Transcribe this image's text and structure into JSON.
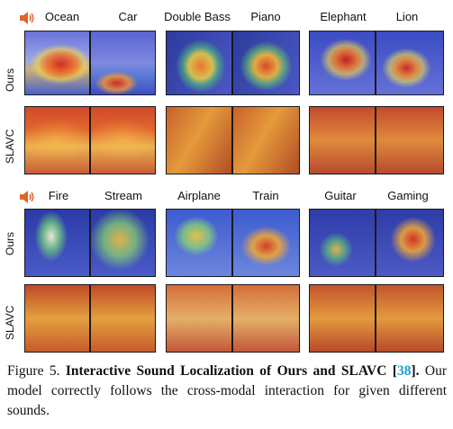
{
  "top_group": {
    "labels": [
      "Ocean",
      "Car",
      "Double Bass",
      "Piano",
      "Elephant",
      "Lion"
    ]
  },
  "bottom_group": {
    "labels": [
      "Fire",
      "Stream",
      "Airplane",
      "Train",
      "Guitar",
      "Gaming"
    ]
  },
  "row_labels": [
    "Ours",
    "SLAVC"
  ],
  "icons": {
    "sound": "speaker-icon"
  },
  "caption": {
    "figure": "Figure 5.",
    "title": "Interactive Sound Localization of Ours and SLAVC",
    "cite_open": "[",
    "cite_num": "38",
    "cite_close": "].",
    "body": "Our model correctly follows the cross-modal interaction for given different sounds."
  }
}
